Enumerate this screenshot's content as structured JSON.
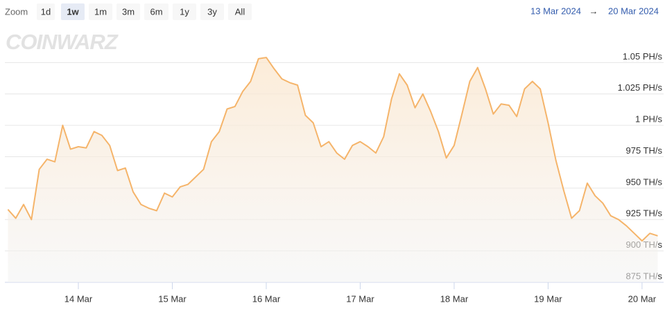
{
  "chart_data": {
    "type": "area",
    "watermark": "COINWARZ",
    "zoom": {
      "label": "Zoom",
      "buttons": [
        "1d",
        "1w",
        "1m",
        "3m",
        "6m",
        "1y",
        "3y",
        "All"
      ],
      "selected": 1
    },
    "range": {
      "from": "13 Mar 2024",
      "arrow": "→",
      "to": "20 Mar 2024"
    },
    "color": "#f5b46a",
    "categories": [
      null,
      null,
      null,
      null,
      null,
      null,
      null,
      null,
      null,
      "14 Mar",
      null,
      null,
      null,
      null,
      null,
      null,
      null,
      null,
      null,
      null,
      null,
      "15 Mar",
      null,
      null,
      null,
      null,
      null,
      null,
      null,
      null,
      null,
      null,
      null,
      "16 Mar",
      null,
      null,
      null,
      null,
      null,
      null,
      null,
      null,
      null,
      null,
      null,
      "17 Mar",
      null,
      null,
      null,
      null,
      null,
      null,
      null,
      null,
      null,
      null,
      null,
      "18 Mar",
      null,
      null,
      null,
      null,
      null,
      null,
      null,
      null,
      null,
      null,
      null,
      "19 Mar",
      null,
      null,
      null,
      null,
      null,
      null,
      null,
      null,
      null,
      null,
      null,
      "20 Mar",
      null,
      null
    ],
    "values": [
      933,
      926,
      937,
      925,
      965,
      973,
      971,
      1000,
      981,
      983,
      982,
      995,
      992,
      984,
      964,
      966,
      947,
      937,
      934,
      932,
      946,
      943,
      951,
      953,
      959,
      965,
      987,
      995,
      1013,
      1015,
      1027,
      1035,
      1053,
      1054,
      1045,
      1037,
      1034,
      1032,
      1008,
      1002,
      983,
      987,
      978,
      973,
      984,
      987,
      983,
      978,
      991,
      1021,
      1041,
      1032,
      1014,
      1025,
      1011,
      995,
      974,
      984,
      1009,
      1035,
      1046,
      1029,
      1009,
      1017,
      1016,
      1007,
      1029,
      1035,
      1029,
      1002,
      972,
      948,
      926,
      932,
      954,
      944,
      938,
      928,
      925,
      920,
      914,
      908,
      914,
      912
    ],
    "ylim": [
      875,
      1075
    ],
    "yticks": [
      {
        "value": 875,
        "label": "875 TH/s"
      },
      {
        "value": 900,
        "label": "900 TH/s"
      },
      {
        "value": 925,
        "label": "925 TH/s"
      },
      {
        "value": 950,
        "label": "950 TH/s"
      },
      {
        "value": 975,
        "label": "975 TH/s"
      },
      {
        "value": 1000,
        "label": "1 PH/s"
      },
      {
        "value": 1025,
        "label": "1.025 PH/s"
      },
      {
        "value": 1050,
        "label": "1.05 PH/s"
      }
    ],
    "grid": true
  }
}
